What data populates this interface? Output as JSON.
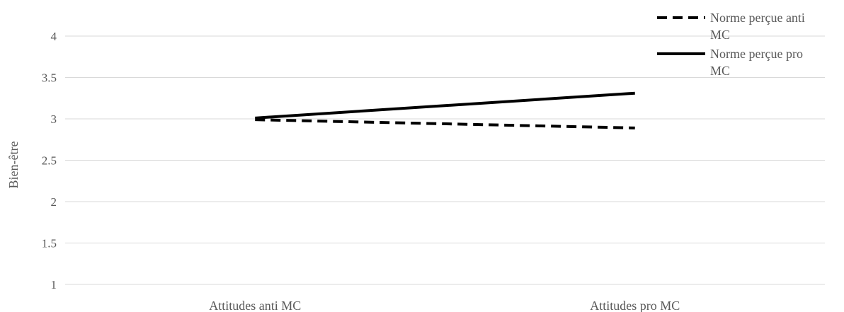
{
  "chart_data": {
    "type": "line",
    "categories": [
      "Attitudes anti MC",
      "Attitudes pro MC"
    ],
    "series": [
      {
        "name": "Norme perçue anti MC",
        "values": [
          2.99,
          2.89
        ],
        "style": "dashed",
        "color": "#000000"
      },
      {
        "name": "Norme perçue pro MC",
        "values": [
          3.01,
          3.31
        ],
        "style": "solid",
        "color": "#000000"
      }
    ],
    "ylabel": "Bien-être",
    "xlabel": "",
    "ylim": [
      1,
      4
    ],
    "yticks": [
      1,
      1.5,
      2,
      2.5,
      3,
      3.5,
      4
    ],
    "grid": true,
    "legend_position": "top-right",
    "legend_lines": [
      [
        "Norme perçue anti",
        "MC"
      ],
      [
        "Norme perçue pro",
        "MC"
      ]
    ],
    "gridline_color": "#d9d9d9",
    "text_color": "#595959"
  }
}
